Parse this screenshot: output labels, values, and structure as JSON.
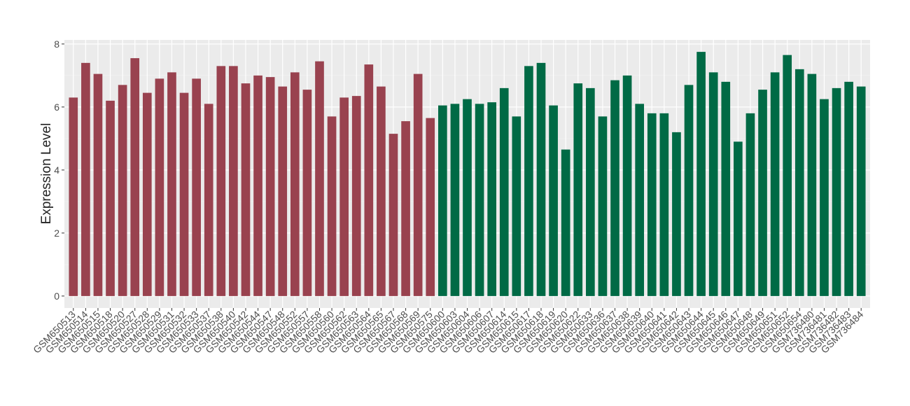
{
  "chart_data": {
    "type": "bar",
    "y_label": "Expression Level",
    "categories": [
      "GSM650513",
      "GSM650514",
      "GSM650515",
      "GSM650518",
      "GSM650520",
      "GSM650527",
      "GSM650528",
      "GSM650529",
      "GSM650531",
      "GSM650532",
      "GSM650533",
      "GSM650537",
      "GSM650538",
      "GSM650540",
      "GSM650542",
      "GSM650544",
      "GSM650547",
      "GSM650548",
      "GSM650552",
      "GSM650557",
      "GSM650558",
      "GSM650560",
      "GSM650562",
      "GSM650563",
      "GSM650564",
      "GSM650565",
      "GSM650567",
      "GSM650568",
      "GSM650569",
      "GSM650575",
      "GSM650600",
      "GSM650603",
      "GSM650604",
      "GSM650606",
      "GSM650607",
      "GSM650614",
      "GSM650615",
      "GSM650617",
      "GSM650618",
      "GSM650619",
      "GSM650620",
      "GSM650622",
      "GSM650633",
      "GSM650636",
      "GSM650637",
      "GSM650638",
      "GSM650639",
      "GSM650640",
      "GSM650641",
      "GSM650642",
      "GSM650643",
      "GSM650644",
      "GSM650645",
      "GSM650646",
      "GSM650647",
      "GSM650648",
      "GSM650649",
      "GSM650651",
      "GSM650652",
      "GSM650654",
      "GSM736480",
      "GSM736481",
      "GSM736482",
      "GSM736483",
      "GSM736484"
    ],
    "values": [
      6.3,
      7.4,
      7.05,
      6.2,
      6.7,
      7.55,
      6.45,
      6.9,
      7.1,
      6.45,
      6.9,
      6.1,
      7.3,
      7.3,
      6.75,
      7.0,
      6.95,
      6.65,
      7.1,
      6.55,
      7.45,
      5.7,
      6.3,
      6.35,
      7.35,
      6.65,
      5.15,
      5.55,
      7.05,
      5.65,
      6.05,
      6.1,
      6.25,
      6.1,
      6.15,
      6.6,
      5.7,
      7.3,
      7.4,
      6.05,
      4.65,
      6.75,
      6.6,
      5.7,
      6.85,
      7.0,
      6.1,
      5.8,
      5.8,
      5.2,
      6.7,
      7.75,
      7.1,
      6.8,
      4.9,
      5.8,
      6.55,
      7.1,
      7.65,
      7.2,
      7.05,
      6.25,
      6.6,
      6.8,
      6.65
    ],
    "colors": [
      "#99424f",
      "#99424f",
      "#99424f",
      "#99424f",
      "#99424f",
      "#99424f",
      "#99424f",
      "#99424f",
      "#99424f",
      "#99424f",
      "#99424f",
      "#99424f",
      "#99424f",
      "#99424f",
      "#99424f",
      "#99424f",
      "#99424f",
      "#99424f",
      "#99424f",
      "#99424f",
      "#99424f",
      "#99424f",
      "#99424f",
      "#99424f",
      "#99424f",
      "#99424f",
      "#99424f",
      "#99424f",
      "#99424f",
      "#99424f",
      "#006a45",
      "#006a45",
      "#006a45",
      "#006a45",
      "#006a45",
      "#006a45",
      "#006a45",
      "#006a45",
      "#006a45",
      "#006a45",
      "#006a45",
      "#006a45",
      "#006a45",
      "#006a45",
      "#006a45",
      "#006a45",
      "#006a45",
      "#006a45",
      "#006a45",
      "#006a45",
      "#006a45",
      "#006a45",
      "#006a45",
      "#006a45",
      "#006a45",
      "#006a45",
      "#006a45",
      "#006a45",
      "#006a45",
      "#006a45",
      "#006a45",
      "#006a45",
      "#006a45",
      "#006a45",
      "#006a45"
    ],
    "ylim": [
      -0.38,
      8.13
    ],
    "yticks": [
      0,
      2,
      4,
      6,
      8
    ],
    "grid": true
  }
}
